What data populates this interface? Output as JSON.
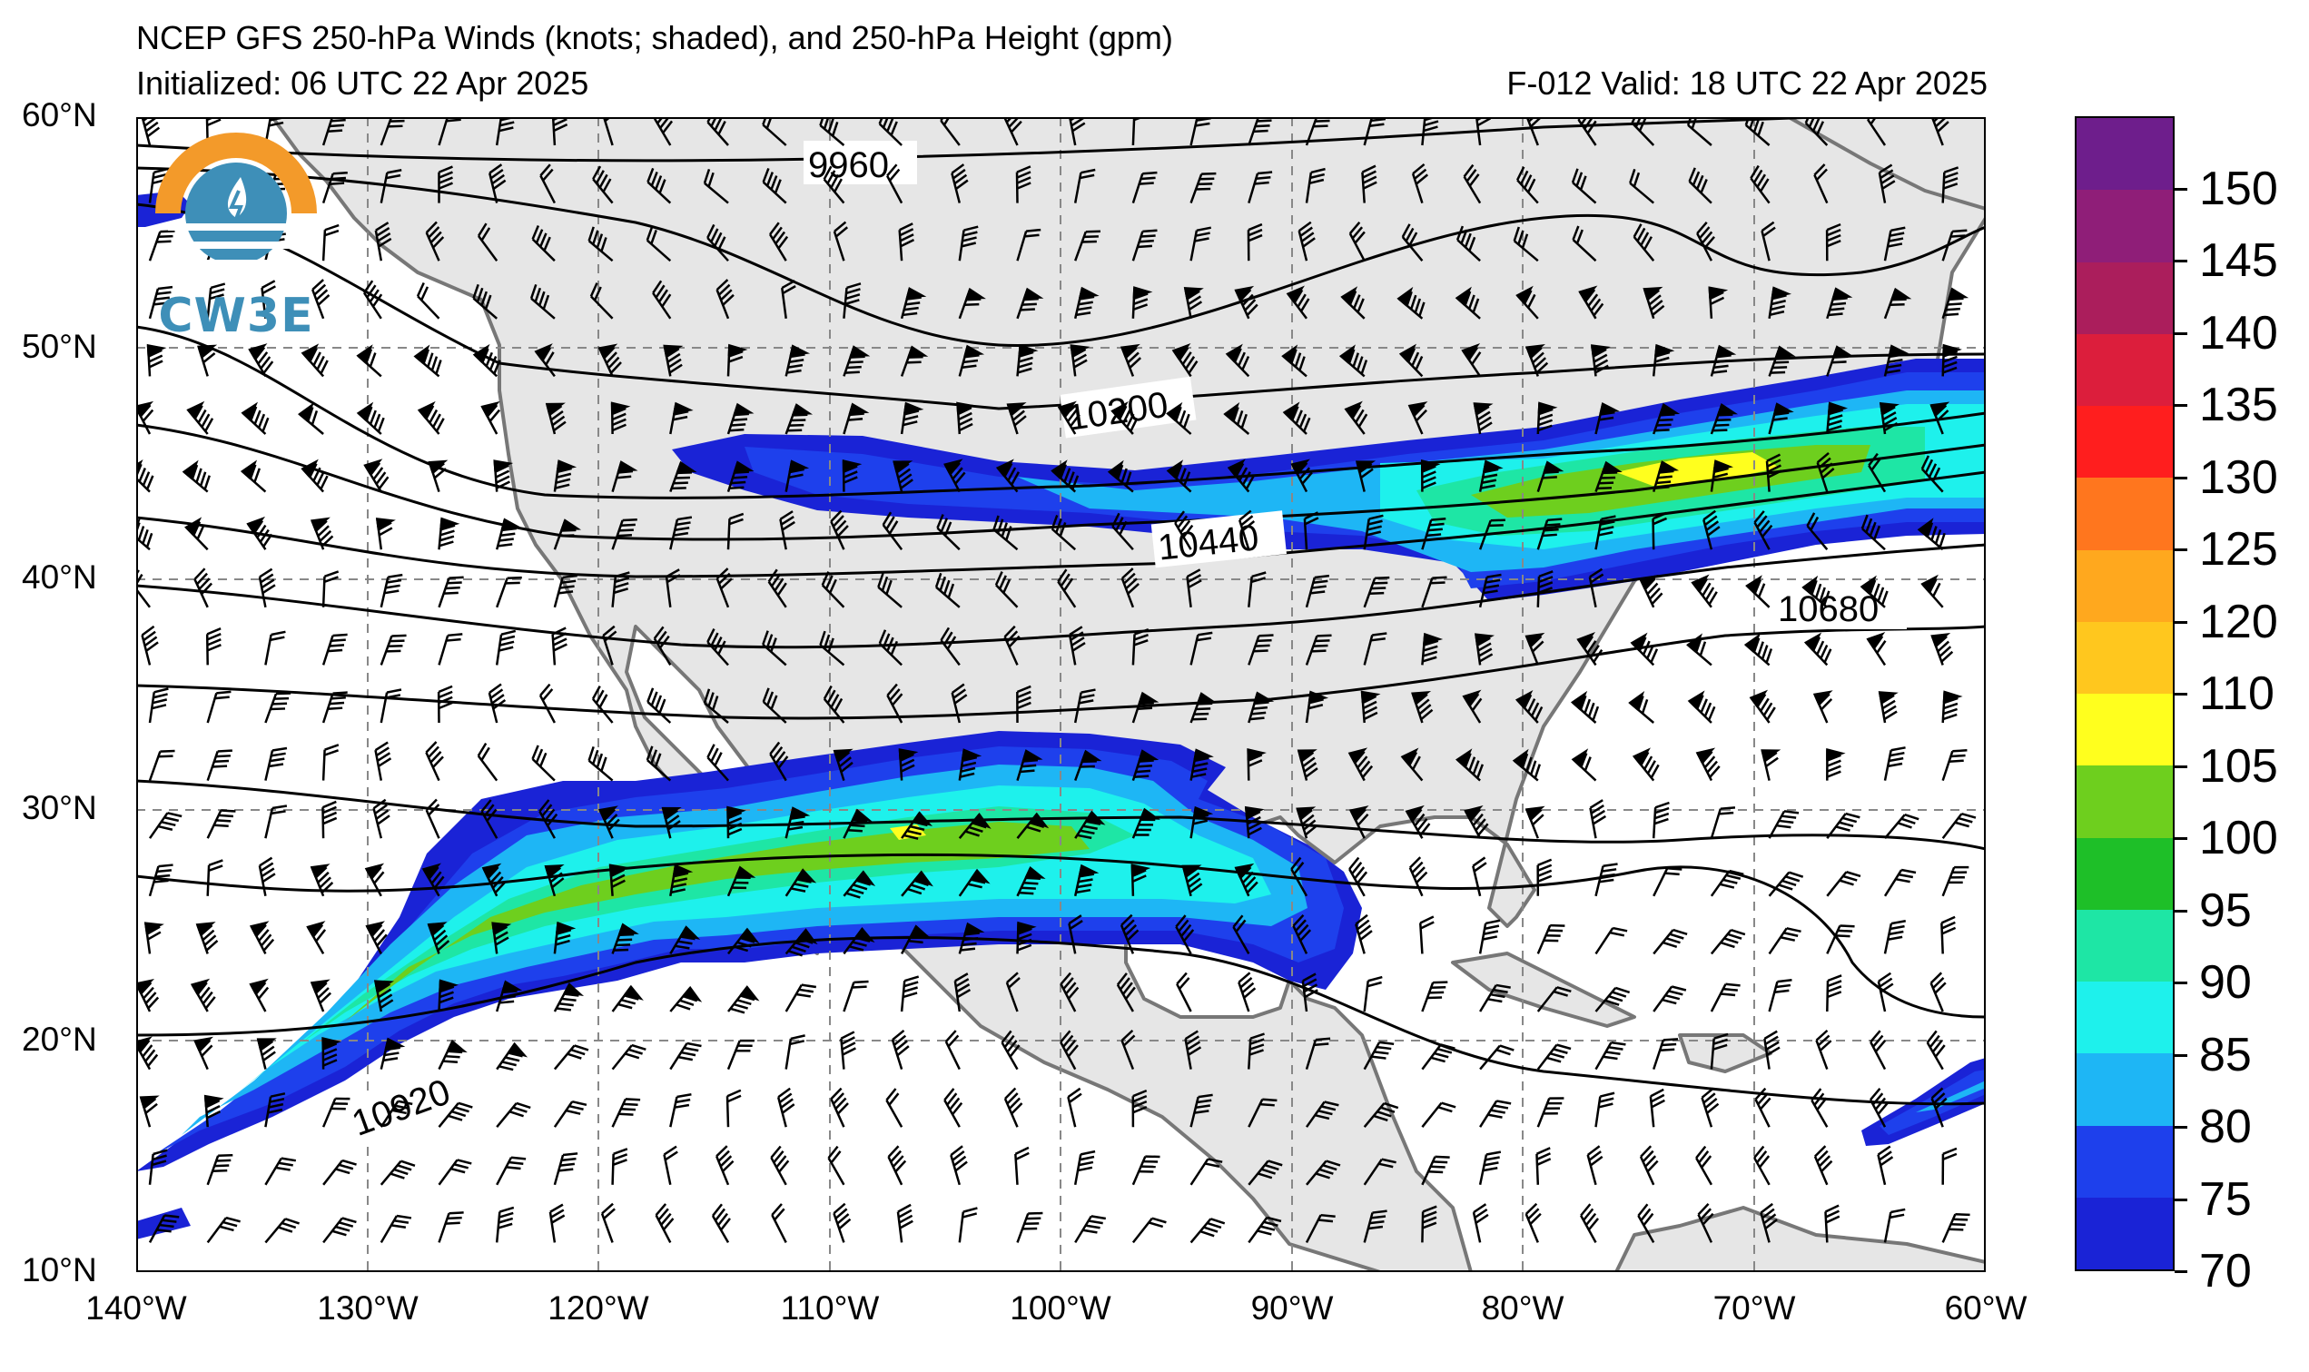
{
  "header": {
    "title": "NCEP GFS 250-hPa Winds (knots; shaded), and 250-hPa Height (gpm)",
    "initialized": "Initialized: 06 UTC 22 Apr 2025",
    "valid": "F-012  Valid: 18 UTC 22 Apr 2025"
  },
  "logo": {
    "text": "CW3E",
    "colors": {
      "orange": "#f39a2a",
      "blue": "#3e8fb8"
    }
  },
  "map": {
    "lat_labels": [
      "60°N",
      "50°N",
      "40°N",
      "30°N",
      "20°N",
      "10°N"
    ],
    "lon_labels": [
      "140°W",
      "130°W",
      "120°W",
      "110°W",
      "100°W",
      "90°W",
      "80°W",
      "70°W",
      "60°W"
    ],
    "lat_range": [
      10,
      60
    ],
    "lon_range": [
      -140,
      -60
    ],
    "grid_lines": "dashed",
    "land_color": "#e6e6e6",
    "contour_labels": [
      "9960",
      "10200",
      "10440",
      "10680",
      "10920"
    ]
  },
  "colorbar": {
    "ticks": [
      "70",
      "75",
      "80",
      "85",
      "90",
      "95",
      "100",
      "105",
      "110",
      "120",
      "125",
      "130",
      "135",
      "140",
      "145",
      "150"
    ],
    "colors": [
      "#1a23d6",
      "#1e40ec",
      "#1eb6f5",
      "#1ef1ec",
      "#1ee6a5",
      "#1ebf28",
      "#6ecf1e",
      "#ffff1e",
      "#ffc71e",
      "#ffa81e",
      "#ff761e",
      "#ff1e1e",
      "#dc1e3c",
      "#ab1e5c",
      "#8f1e78",
      "#6e1e8c"
    ]
  }
}
